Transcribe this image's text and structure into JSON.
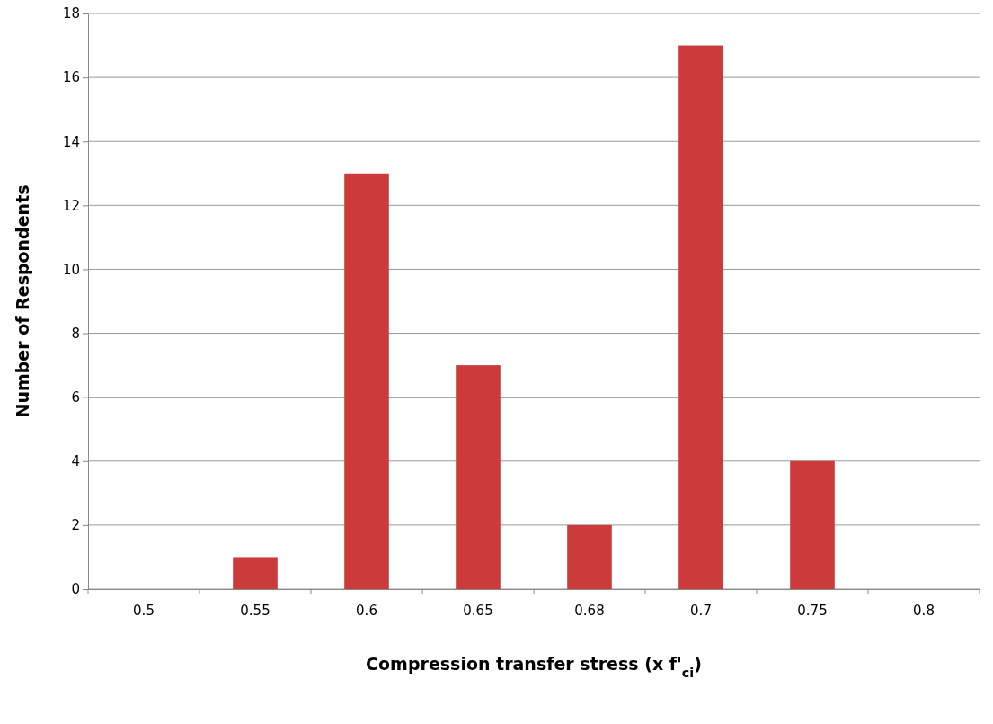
{
  "chart_data": {
    "type": "bar",
    "xlabel": "Compression transfer stress (x f'$_{ci}$)",
    "ylabel": "Number of Respondents",
    "categories": [
      "0.5",
      "0.55",
      "0.6",
      "0.65",
      "0.68",
      "0.7",
      "0.75",
      "0.8"
    ],
    "values": [
      0,
      1,
      13,
      7,
      2,
      17,
      4,
      0
    ],
    "color": "#cc3b3b",
    "ylim": [
      0,
      18
    ],
    "yticks": [
      0,
      2,
      4,
      6,
      8,
      10,
      12,
      14,
      16,
      18
    ],
    "grid": "y"
  }
}
